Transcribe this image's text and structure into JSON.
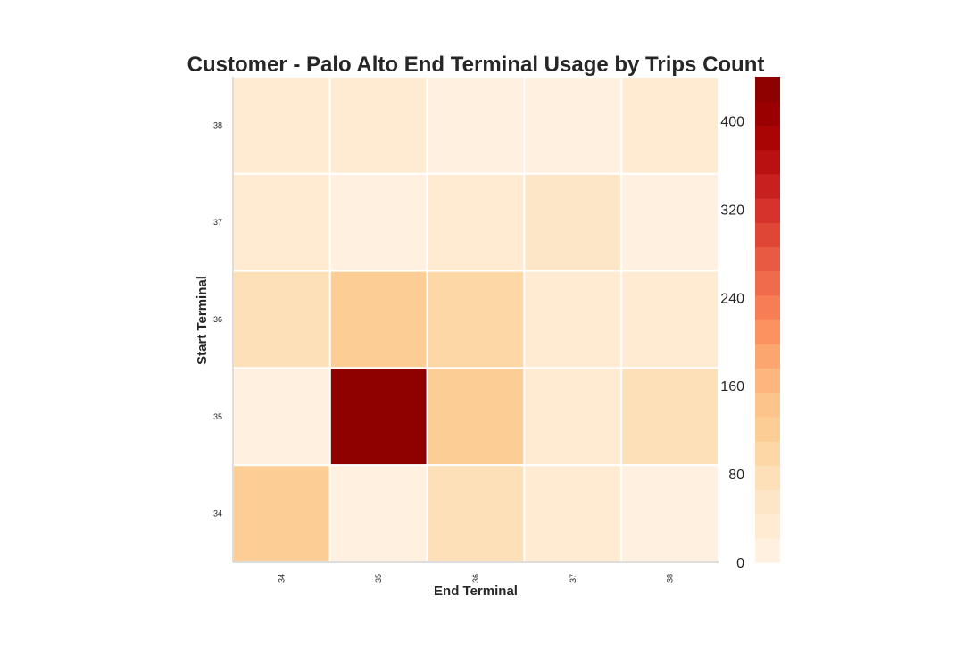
{
  "chart_data": {
    "type": "heatmap",
    "title": "Customer - Palo Alto End Terminal Usage by Trips Count",
    "xlabel": "End Terminal",
    "ylabel": "Start Terminal",
    "x_categories": [
      "34",
      "35",
      "36",
      "37",
      "38"
    ],
    "y_categories": [
      "38",
      "37",
      "36",
      "35",
      "34"
    ],
    "values": [
      [
        28,
        30,
        16,
        14,
        36
      ],
      [
        22,
        14,
        28,
        50,
        14
      ],
      [
        72,
        110,
        90,
        30,
        30
      ],
      [
        10,
        440,
        120,
        30,
        72
      ],
      [
        120,
        14,
        70,
        24,
        20
      ]
    ],
    "colorbar": {
      "min": 0,
      "max": 440,
      "ticks": [
        0,
        80,
        160,
        240,
        320,
        400
      ],
      "colormap": "OrRd",
      "levels": 20,
      "colors": [
        "#fff0e0",
        "#feebd1",
        "#fde6c8",
        "#fde0b8",
        "#fdd7a6",
        "#fdcd96",
        "#fcc48a",
        "#fcb67e",
        "#fca66f",
        "#fb9260",
        "#f77d55",
        "#f06b4b",
        "#e85a41",
        "#e04636",
        "#d5332b",
        "#c8201f",
        "#b91011",
        "#aa0505",
        "#9b0000",
        "#8f0000"
      ]
    },
    "grid": false
  }
}
